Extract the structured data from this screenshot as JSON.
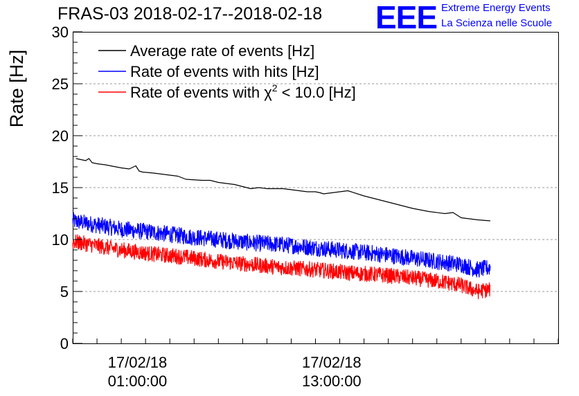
{
  "header": {
    "title": "FRAS-03 2018-02-17--2018-02-18",
    "logo_text": "EEE",
    "logo_line1": "Extreme Energy Events",
    "logo_line2": "La Scienza nelle Scuole"
  },
  "colors": {
    "black": "#000000",
    "blue": "#0000ff",
    "red": "#ff0000",
    "grid": "#999999"
  },
  "chart_data": {
    "type": "line",
    "title": "FRAS-03 2018-02-17--2018-02-18",
    "xlabel": "",
    "ylabel": "Rate [Hz]",
    "x_unit": "hours after 2018-02-17 00:00",
    "xlim": [
      -3,
      27
    ],
    "ylim": [
      0,
      30
    ],
    "yticks": [
      0,
      5,
      10,
      15,
      20,
      25,
      30
    ],
    "xticks": [
      {
        "x": 1,
        "label_date": "17/02/18",
        "label_time": "01:00:00"
      },
      {
        "x": 13,
        "label_date": "17/02/18",
        "label_time": "13:00:00"
      }
    ],
    "grid": true,
    "legend_position": "top-left",
    "series": [
      {
        "name": "Average rate of events [Hz]",
        "color": "#000000",
        "noise": 0,
        "x": [
          -2.8,
          -2.2,
          -2.0,
          -1.8,
          -1.5,
          -1.0,
          0.0,
          0.5,
          0.9,
          1.1,
          1.3,
          2.0,
          3.0,
          3.5,
          4.0,
          5.0,
          5.5,
          6.0,
          7.0,
          8.0,
          8.5,
          9.0,
          10.0,
          11.0,
          11.5,
          12.0,
          12.3,
          12.5,
          13.0,
          14.0,
          15.0,
          16.0,
          17.0,
          18.0,
          19.0,
          20.0,
          20.5,
          21.0,
          22.0,
          22.8
        ],
        "y": [
          17.8,
          17.6,
          17.8,
          17.4,
          17.3,
          17.2,
          16.9,
          16.8,
          17.1,
          16.6,
          16.5,
          16.4,
          16.2,
          16.1,
          15.8,
          15.7,
          15.7,
          15.5,
          15.3,
          14.9,
          15.0,
          14.9,
          14.9,
          14.7,
          14.6,
          14.6,
          14.5,
          14.4,
          14.5,
          14.7,
          14.2,
          13.8,
          13.4,
          13.0,
          12.7,
          12.5,
          12.6,
          12.1,
          11.9,
          11.8
        ]
      },
      {
        "name": "Rate of events with hits [Hz]",
        "color": "#0000ff",
        "noise": 0.8,
        "x": [
          -3.0,
          0.0,
          2.0,
          4.0,
          6.0,
          8.0,
          10.0,
          12.0,
          14.0,
          16.0,
          18.0,
          20.0,
          21.0,
          22.0,
          22.8
        ],
        "y": [
          11.8,
          11.0,
          10.7,
          10.3,
          10.0,
          9.7,
          9.5,
          9.2,
          8.9,
          8.6,
          8.2,
          7.8,
          7.6,
          7.1,
          7.3
        ]
      },
      {
        "name": "Rate of events with χ2 < 10.0 [Hz]",
        "color": "#ff0000",
        "noise": 0.75,
        "x": [
          -3.0,
          0.0,
          2.0,
          4.0,
          6.0,
          8.0,
          10.0,
          12.0,
          14.0,
          16.0,
          18.0,
          20.0,
          21.0,
          22.0,
          22.8
        ],
        "y": [
          9.8,
          9.0,
          8.6,
          8.3,
          7.9,
          7.6,
          7.3,
          7.1,
          6.8,
          6.6,
          6.3,
          5.9,
          5.6,
          5.0,
          5.2
        ]
      }
    ]
  }
}
